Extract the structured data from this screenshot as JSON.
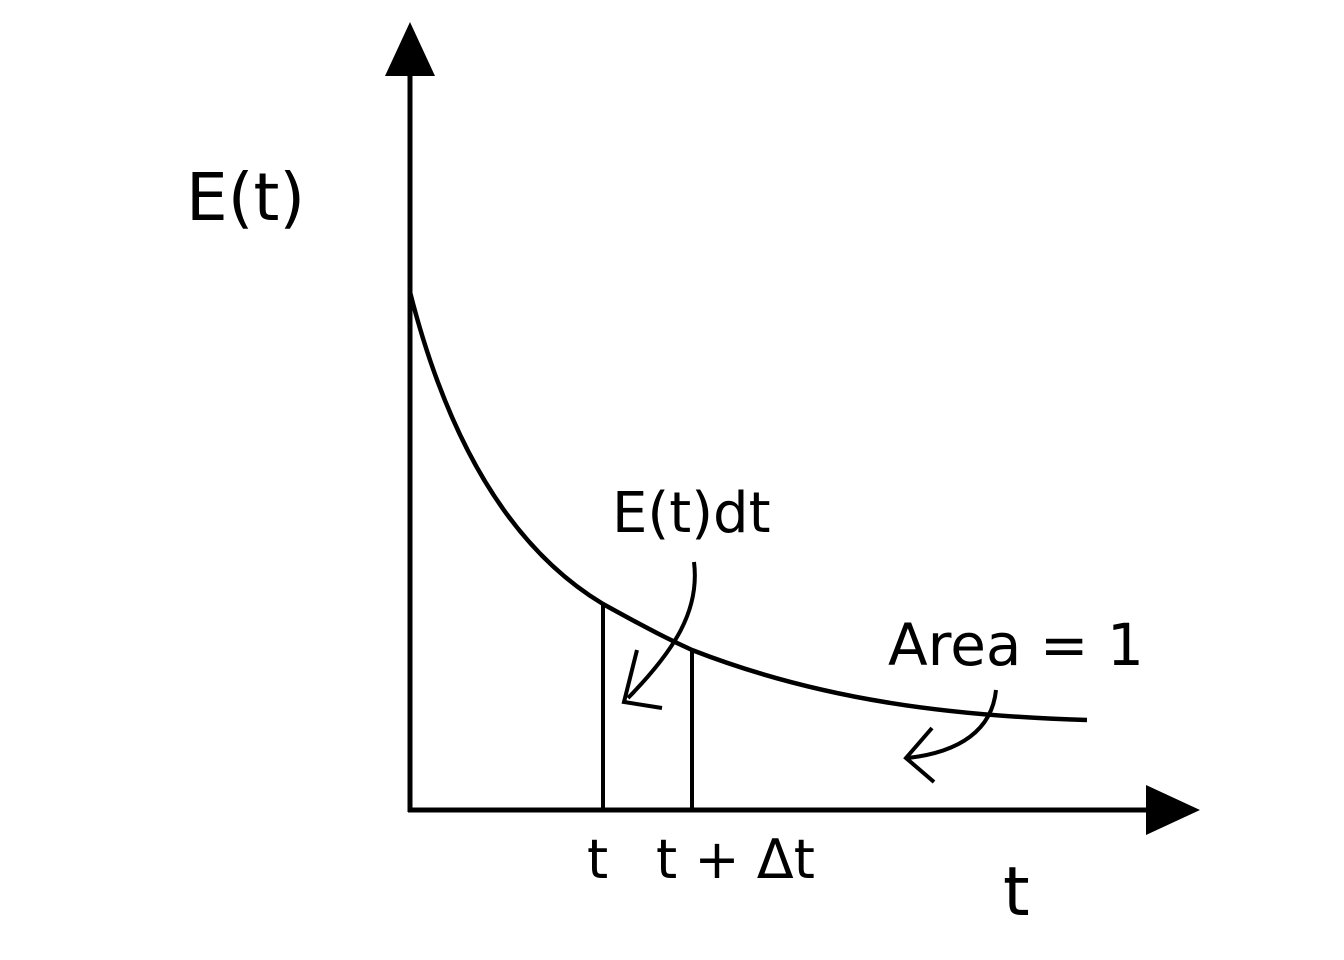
{
  "labels": {
    "y_axis": "E(t)",
    "x_axis": "t",
    "strip_annotation": "E(t)dt",
    "area_annotation": "Area = 1",
    "tick_t": "t",
    "tick_t_plus_dt": "t + Δt"
  },
  "colors": {
    "stroke": "#000000",
    "background": "#ffffff"
  }
}
